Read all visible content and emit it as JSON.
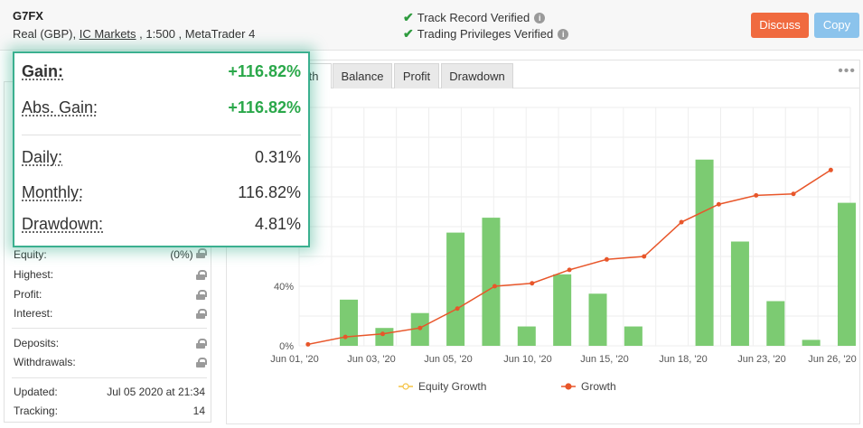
{
  "header": {
    "account_name": "G7FX",
    "account_type": "Real (GBP),",
    "broker": "IC Markets",
    "leverage_platform": ", 1:500 , MetaTrader 4",
    "verifications": [
      "Track Record Verified",
      "Trading Privileges Verified"
    ],
    "discuss_label": "Discuss",
    "copy_label": "Copy"
  },
  "stats_card": {
    "gain_label": "Gain:",
    "gain_value": "+116.82%",
    "abs_gain_label": "Abs. Gain:",
    "abs_gain_value": "+116.82%",
    "daily_label": "Daily:",
    "daily_value": "0.31%",
    "monthly_label": "Monthly:",
    "monthly_value": "116.82%",
    "drawdown_label": "Drawdown:",
    "drawdown_value": "4.81%"
  },
  "left_panel": {
    "equity_label": "Equity:",
    "equity_value": "(0%)",
    "highest_label": "Highest:",
    "profit_label": "Profit:",
    "interest_label": "Interest:",
    "deposits_label": "Deposits:",
    "withdrawals_label": "Withdrawals:",
    "updated_label": "Updated:",
    "updated_value": "Jul 05 2020 at 21:34",
    "tracking_label": "Tracking:",
    "tracking_value": "14"
  },
  "tabs": {
    "growth": "th",
    "balance": "Balance",
    "profit": "Profit",
    "drawdown": "Drawdown",
    "more": "•••"
  },
  "chart_data": {
    "type": "bar",
    "x_ticks": [
      "Jun 01, '20",
      "Jun 03, '20",
      "Jun 05, '20",
      "Jun 10, '20",
      "Jun 15, '20",
      "Jun 18, '20",
      "Jun 23, '20",
      "Jun 26, '20"
    ],
    "y_ticks": [
      "0%",
      "40%"
    ],
    "ylim": [
      0,
      160
    ],
    "grid": true,
    "legend_placement": "bottom",
    "series": [
      {
        "name": "Equity Growth",
        "kind": "line",
        "color": "#f5c242",
        "values": []
      },
      {
        "name": "Growth",
        "kind": "line",
        "color": "#e8562a",
        "values": [
          1,
          6,
          8,
          12,
          25,
          40,
          42,
          51,
          58,
          60,
          83,
          95,
          101,
          102,
          118
        ]
      },
      {
        "kind": "bar",
        "color": "#7ccb72",
        "values": [
          31,
          12,
          22,
          76,
          86,
          13,
          48,
          35,
          13,
          125,
          70,
          30,
          4,
          96
        ]
      }
    ],
    "bar_color": "#7ccb72",
    "line_color": "#e8562a"
  }
}
